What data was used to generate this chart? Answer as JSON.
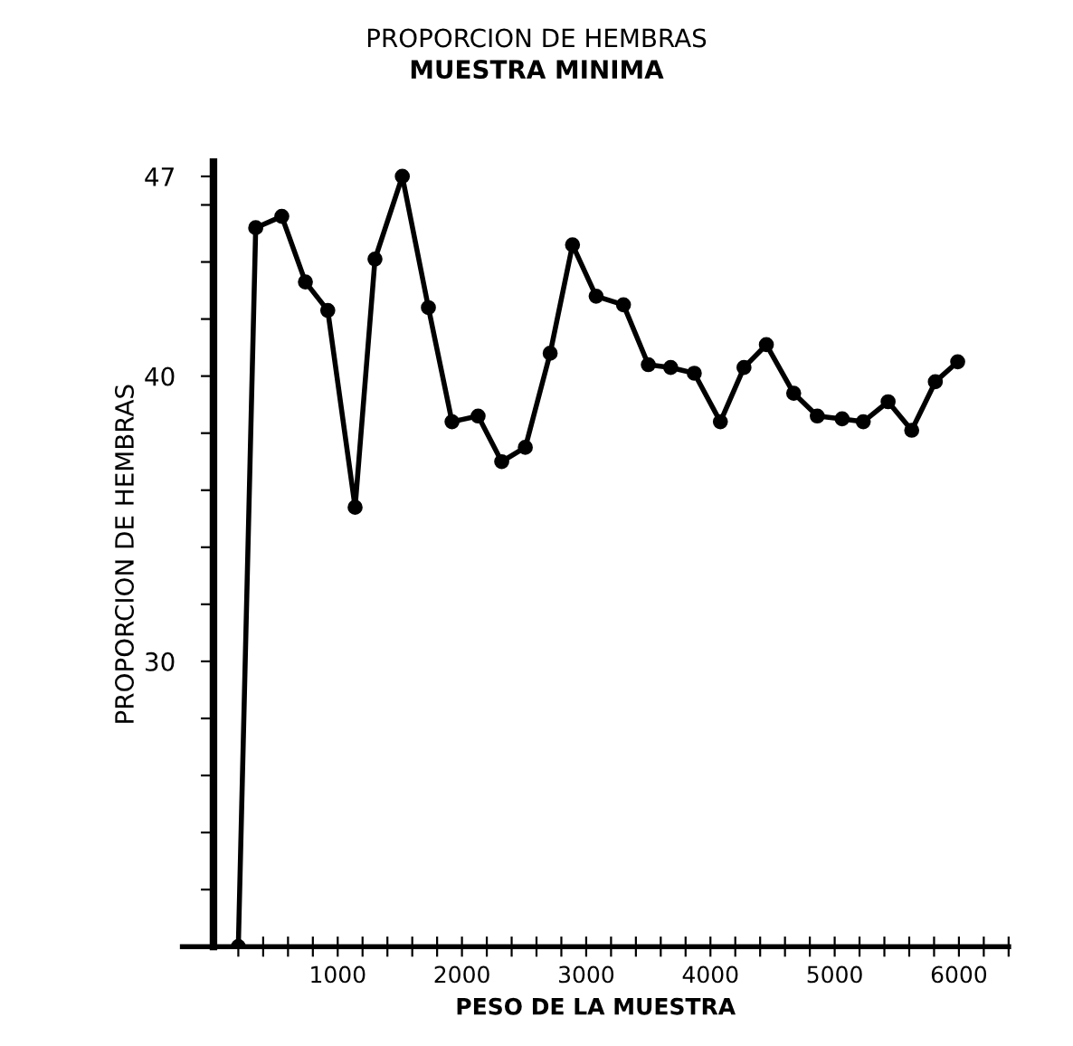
{
  "chart_data": {
    "type": "line",
    "title": "PROPORCION DE HEMBRAS",
    "subtitle": "MUESTRA MINIMA",
    "xlabel": "PESO DE LA MUESTRA",
    "ylabel": "PROPORCION DE HEMBRAS",
    "x": [
      200,
      340,
      550,
      740,
      920,
      1140,
      1300,
      1520,
      1730,
      1920,
      2130,
      2320,
      2510,
      2710,
      2890,
      3080,
      3300,
      3500,
      3680,
      3870,
      4080,
      4270,
      4450,
      4670,
      4860,
      5060,
      5230,
      5430,
      5620,
      5810,
      5990
    ],
    "series": [
      {
        "color": "#000000",
        "values": [
          20,
          45.2,
          45.6,
          43.3,
          42.3,
          35.4,
          44.1,
          47.0,
          42.4,
          38.4,
          38.6,
          37.0,
          37.5,
          40.8,
          44.6,
          42.8,
          42.5,
          40.4,
          40.3,
          40.1,
          38.4,
          40.3,
          41.1,
          39.4,
          38.6,
          38.5,
          38.4,
          39.1,
          38.1,
          39.8,
          40.5
        ]
      }
    ],
    "xlim": [
      -250,
      6400
    ],
    "ylim": [
      20,
      47.5
    ],
    "xticks": [
      {
        "value": 200,
        "label": null
      },
      {
        "value": 400,
        "label": null
      },
      {
        "value": 600,
        "label": null
      },
      {
        "value": 800,
        "label": null
      },
      1000,
      {
        "value": 1200,
        "label": null
      },
      {
        "value": 1400,
        "label": null
      },
      {
        "value": 1600,
        "label": null
      },
      {
        "value": 1800,
        "label": null
      },
      2000,
      {
        "value": 2200,
        "label": null
      },
      {
        "value": 2400,
        "label": null
      },
      {
        "value": 2600,
        "label": null
      },
      {
        "value": 2800,
        "label": null
      },
      3000,
      {
        "value": 3200,
        "label": null
      },
      {
        "value": 3400,
        "label": null
      },
      {
        "value": 3600,
        "label": null
      },
      {
        "value": 3800,
        "label": null
      },
      4000,
      {
        "value": 4200,
        "label": null
      },
      {
        "value": 4400,
        "label": null
      },
      {
        "value": 4600,
        "label": null
      },
      {
        "value": 4800,
        "label": null
      },
      5000,
      {
        "value": 5200,
        "label": null
      },
      {
        "value": 5400,
        "label": null
      },
      {
        "value": 5600,
        "label": null
      },
      {
        "value": 5800,
        "label": null
      },
      6000,
      {
        "value": 6200,
        "label": null
      },
      {
        "value": 6400,
        "label": null
      }
    ],
    "yticks": [
      {
        "value": 22,
        "label": null
      },
      {
        "value": 24,
        "label": null
      },
      {
        "value": 26,
        "label": null
      },
      {
        "value": 28,
        "label": null
      },
      30,
      {
        "value": 32,
        "label": null
      },
      {
        "value": 34,
        "label": null
      },
      {
        "value": 36,
        "label": null
      },
      {
        "value": 38,
        "label": null
      },
      40,
      {
        "value": 42,
        "label": null
      },
      {
        "value": 44,
        "label": null
      },
      {
        "value": 46,
        "label": null
      },
      47
    ],
    "marker": "circle",
    "line_style": "solid",
    "grid": false,
    "legend": false
  }
}
